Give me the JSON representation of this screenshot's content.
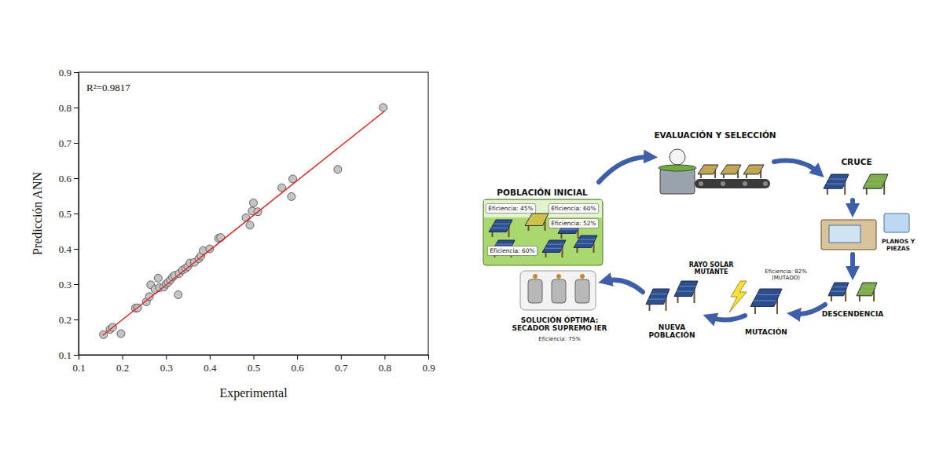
{
  "chart_data": {
    "type": "scatter",
    "x_label": "Experimental",
    "y_label": "Predicción ANN",
    "annotation": "R²=0.9817",
    "xlim": [
      0.1,
      0.9
    ],
    "xticks": [
      0.1,
      0.2,
      0.3,
      0.4,
      0.5,
      0.6,
      0.7,
      0.8,
      0.9
    ],
    "ylim": [
      0.1,
      0.9
    ],
    "yticks": [
      0.1,
      0.2,
      0.3,
      0.4,
      0.5,
      0.6,
      0.7,
      0.8,
      0.9
    ],
    "series": [
      {
        "type": "scatter",
        "color": "#c4c4c4",
        "marker": "circle",
        "x": [
          0.157,
          0.172,
          0.178,
          0.197,
          0.23,
          0.235,
          0.255,
          0.262,
          0.265,
          0.275,
          0.282,
          0.285,
          0.295,
          0.3,
          0.305,
          0.31,
          0.315,
          0.32,
          0.328,
          0.33,
          0.338,
          0.345,
          0.35,
          0.355,
          0.365,
          0.375,
          0.38,
          0.385,
          0.4,
          0.42,
          0.425,
          0.483,
          0.492,
          0.497,
          0.5,
          0.51,
          0.565,
          0.587,
          0.59,
          0.693,
          0.797
        ],
        "values": [
          0.157,
          0.172,
          0.178,
          0.16,
          0.232,
          0.233,
          0.25,
          0.265,
          0.298,
          0.285,
          0.317,
          0.29,
          0.292,
          0.3,
          0.305,
          0.312,
          0.32,
          0.325,
          0.27,
          0.33,
          0.34,
          0.345,
          0.35,
          0.36,
          0.362,
          0.372,
          0.38,
          0.395,
          0.4,
          0.43,
          0.432,
          0.488,
          0.467,
          0.507,
          0.53,
          0.505,
          0.573,
          0.548,
          0.598,
          0.625,
          0.8
        ]
      },
      {
        "type": "line",
        "color": "#e0201b",
        "line_style": "solid",
        "x": [
          0.155,
          0.8
        ],
        "values": [
          0.155,
          0.79
        ]
      }
    ]
  },
  "diagram": {
    "initial_population": {
      "label": "POBLACIÓN INICIAL",
      "efficiencies": [
        "Eficiencia: 45%",
        "Eficiencia: 60%",
        "Eficiencia: 52%",
        "Eficiencia: 60%"
      ]
    },
    "evaluation": {
      "label": "EVALUACIÓN Y SELECCIÓN"
    },
    "crossover": {
      "label": "CRUCE",
      "note": "PLANOS Y PIEZAS"
    },
    "offspring": {
      "label": "DESCENDENCIA"
    },
    "mutation": {
      "label": "MUTACIÓN",
      "trigger": "RAYO SOLAR MUTANTE",
      "efficiency": "Eficiencia: 82% (MUTADO)"
    },
    "new_population": {
      "label": "NUEVA POBLACIÓN"
    },
    "optimal_solution": {
      "label": "SOLUCIÓN ÓPTIMA: SECADOR SUPREMO IER",
      "efficiency": "Eficiencia: 75%"
    }
  }
}
